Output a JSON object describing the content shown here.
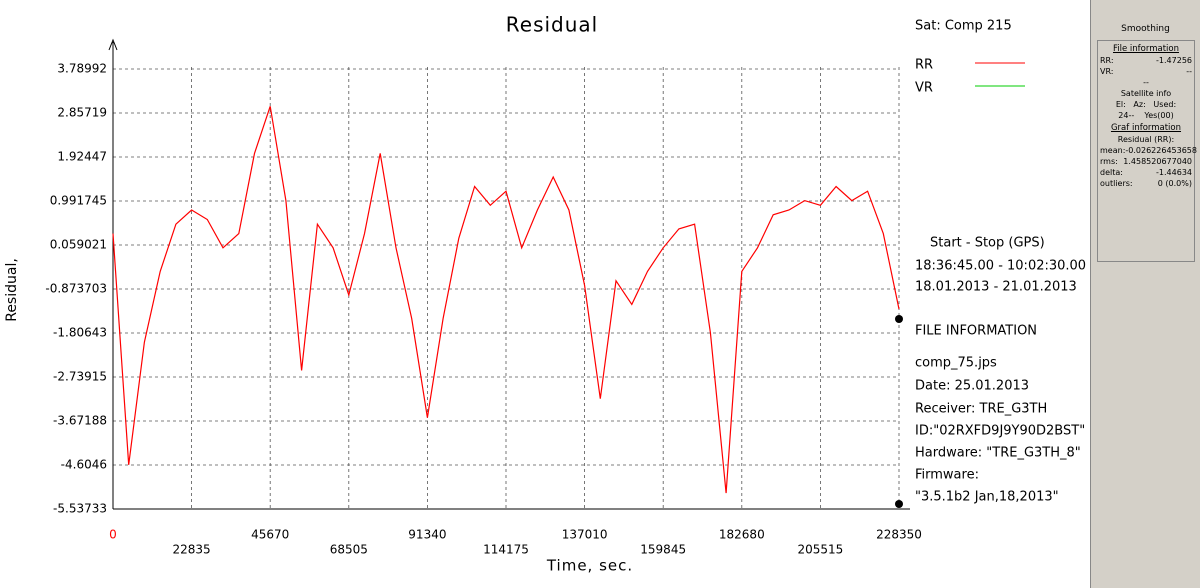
{
  "chart_data": {
    "type": "line",
    "title": "Residual",
    "xlabel": "Time, sec.",
    "ylabel": "Residual,",
    "legend_title": "Sat: Comp 215",
    "x": [
      0,
      4567,
      9134,
      13701,
      18268,
      22835,
      27402,
      31969,
      36536,
      41103,
      45670,
      50237,
      54804,
      59371,
      63938,
      68505,
      73072,
      77639,
      82206,
      86773,
      91340,
      95907,
      100474,
      105041,
      109608,
      114175,
      118742,
      123309,
      127876,
      132443,
      137010,
      141577,
      146144,
      150711,
      155278,
      159845,
      164412,
      168979,
      173546,
      178113,
      182680,
      187247,
      191814,
      196381,
      200948,
      205515,
      210082,
      214649,
      219216,
      223783,
      228350
    ],
    "series": [
      {
        "name": "RR",
        "color": "#ff0000",
        "values": [
          0.3,
          -4.6,
          -2.0,
          -0.5,
          0.5,
          0.8,
          0.6,
          0.0,
          0.3,
          2.0,
          3.0,
          1.0,
          -2.6,
          0.5,
          0.0,
          -1.0,
          0.3,
          2.0,
          0.0,
          -1.5,
          -3.6,
          -1.5,
          0.2,
          1.3,
          0.9,
          1.2,
          0.0,
          0.8,
          1.5,
          0.8,
          -0.8,
          -3.2,
          -0.7,
          -1.2,
          -0.5,
          0.0,
          0.4,
          0.5,
          -1.8,
          -5.2,
          -0.5,
          0.0,
          0.7,
          0.8,
          1.0,
          0.9,
          1.3,
          1.0,
          1.2,
          0.3,
          -1.3
        ]
      },
      {
        "name": "VR",
        "color": "#00cc00",
        "values": [
          null,
          null,
          null,
          null,
          null,
          null,
          null,
          null,
          null,
          null,
          null,
          null,
          null,
          null,
          null,
          null,
          null,
          null,
          null,
          null,
          null,
          null,
          null,
          null,
          null,
          null,
          null,
          null,
          null,
          null,
          null,
          null,
          null,
          null,
          null,
          null,
          null,
          null,
          null,
          null,
          null,
          null,
          null,
          null,
          null,
          null,
          null,
          null,
          null,
          null,
          null
        ]
      }
    ],
    "xlim": [
      0,
      228350
    ],
    "xticks": [
      0,
      22835,
      45670,
      68505,
      91340,
      114175,
      137010,
      159845,
      182680,
      205515,
      228350
    ],
    "ylim": [
      -5.53733,
      3.78992
    ],
    "yticks": [
      3.78992,
      2.85719,
      1.92447,
      0.991745,
      0.059021,
      -0.873703,
      -1.80643,
      -2.73915,
      -3.67188,
      -4.6046,
      -5.53733
    ],
    "grid": true
  },
  "info": {
    "period_header": "Start  -  Stop  (GPS)",
    "time_range": "18:36:45.00 - 10:02:30.00",
    "date_range": "18.01.2013 - 21.01.2013",
    "file_header": "FILE INFORMATION",
    "file": "comp_75.jps",
    "date": "Date: 25.01.2013",
    "receiver": "Receiver: TRE_G3TH",
    "id": "ID:\"02RXFD9J9Y90D2BST\"",
    "hardware": "Hardware: \"TRE_G3TH_8\"",
    "firmware_label": "Firmware:",
    "firmware": "\"3.5.1b2 Jan,18,2013\""
  },
  "panel": {
    "title": "Smoothing",
    "file_info": "File information",
    "rr_label": "RR:",
    "rr": "-1.47256",
    "vr_label": "VR:",
    "vr": "--",
    "dash": "--",
    "sat_info": "Satellite info",
    "sat_cols": "El:   Az:   Used:",
    "sat_row": "24--    Yes(00)",
    "graf_info": "Graf information",
    "residual": "Residual (RR):",
    "mean_label": "mean:",
    "mean": "-0.026226453658",
    "rms_label": "rms:",
    "rms": "1.458520677040",
    "delta_label": "delta:",
    "delta": "-1.44634",
    "outliers_label": "outliers:",
    "outliers": "0 (0.0%)"
  }
}
